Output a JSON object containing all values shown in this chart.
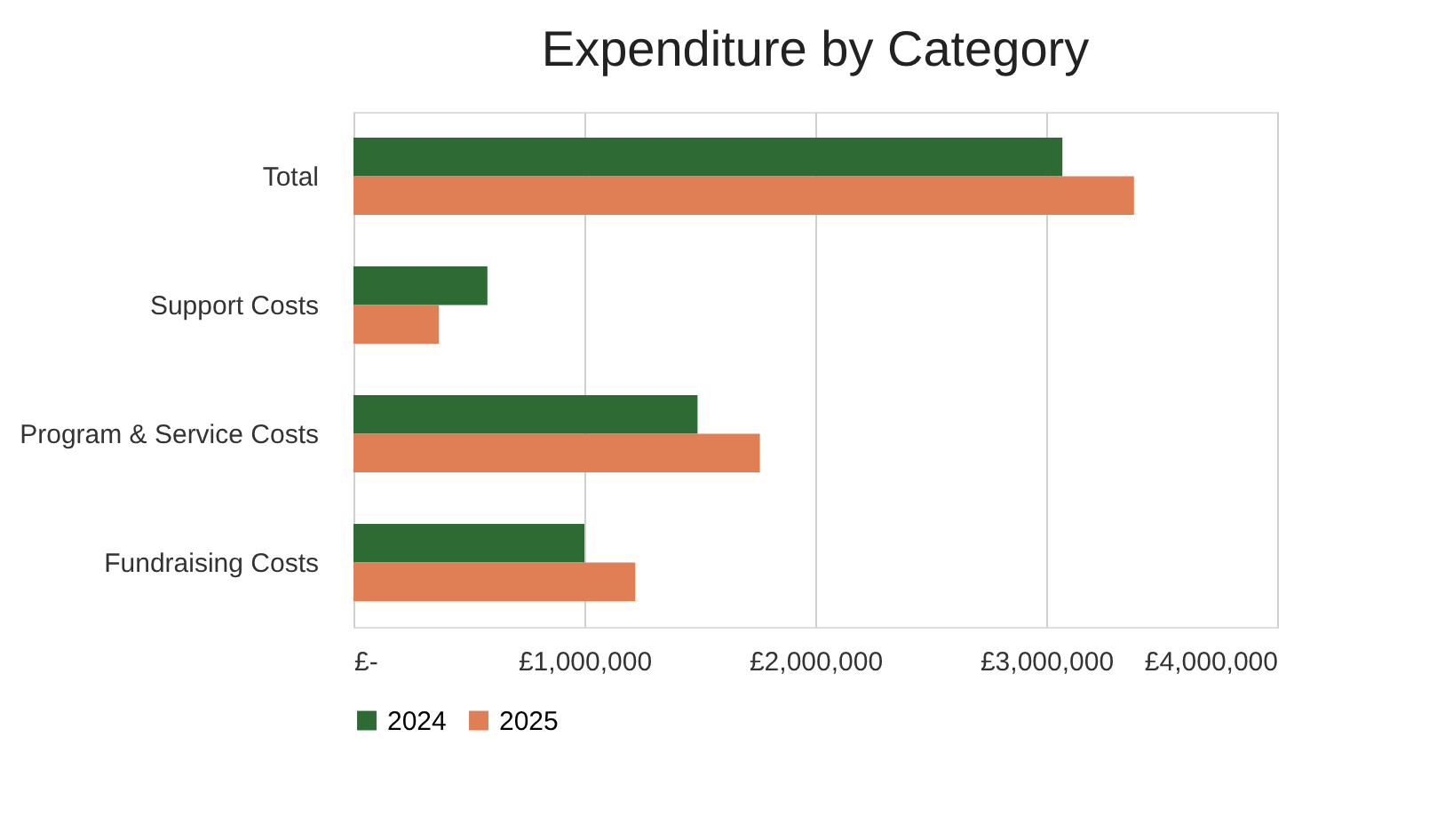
{
  "chart_data": {
    "type": "bar",
    "orientation": "horizontal",
    "title": "Expenditure by Category",
    "categories": [
      "Total",
      "Support Costs",
      "Program & Service Costs",
      "Fundraising Costs"
    ],
    "series": [
      {
        "name": "2024",
        "color": "#2e6b34",
        "values": [
          3070000,
          580000,
          1490000,
          1000000
        ]
      },
      {
        "name": "2025",
        "color": "#e07f55",
        "values": [
          3380000,
          370000,
          1760000,
          1220000
        ]
      }
    ],
    "xlim": [
      0,
      4000000
    ],
    "xticks": [
      {
        "value": 0,
        "label": "£-"
      },
      {
        "value": 1000000,
        "label": "£1,000,000"
      },
      {
        "value": 2000000,
        "label": "£2,000,000"
      },
      {
        "value": 3000000,
        "label": "£3,000,000"
      },
      {
        "value": 4000000,
        "label": "£4,000,000"
      }
    ],
    "grid": "x",
    "legend": "bottom"
  }
}
